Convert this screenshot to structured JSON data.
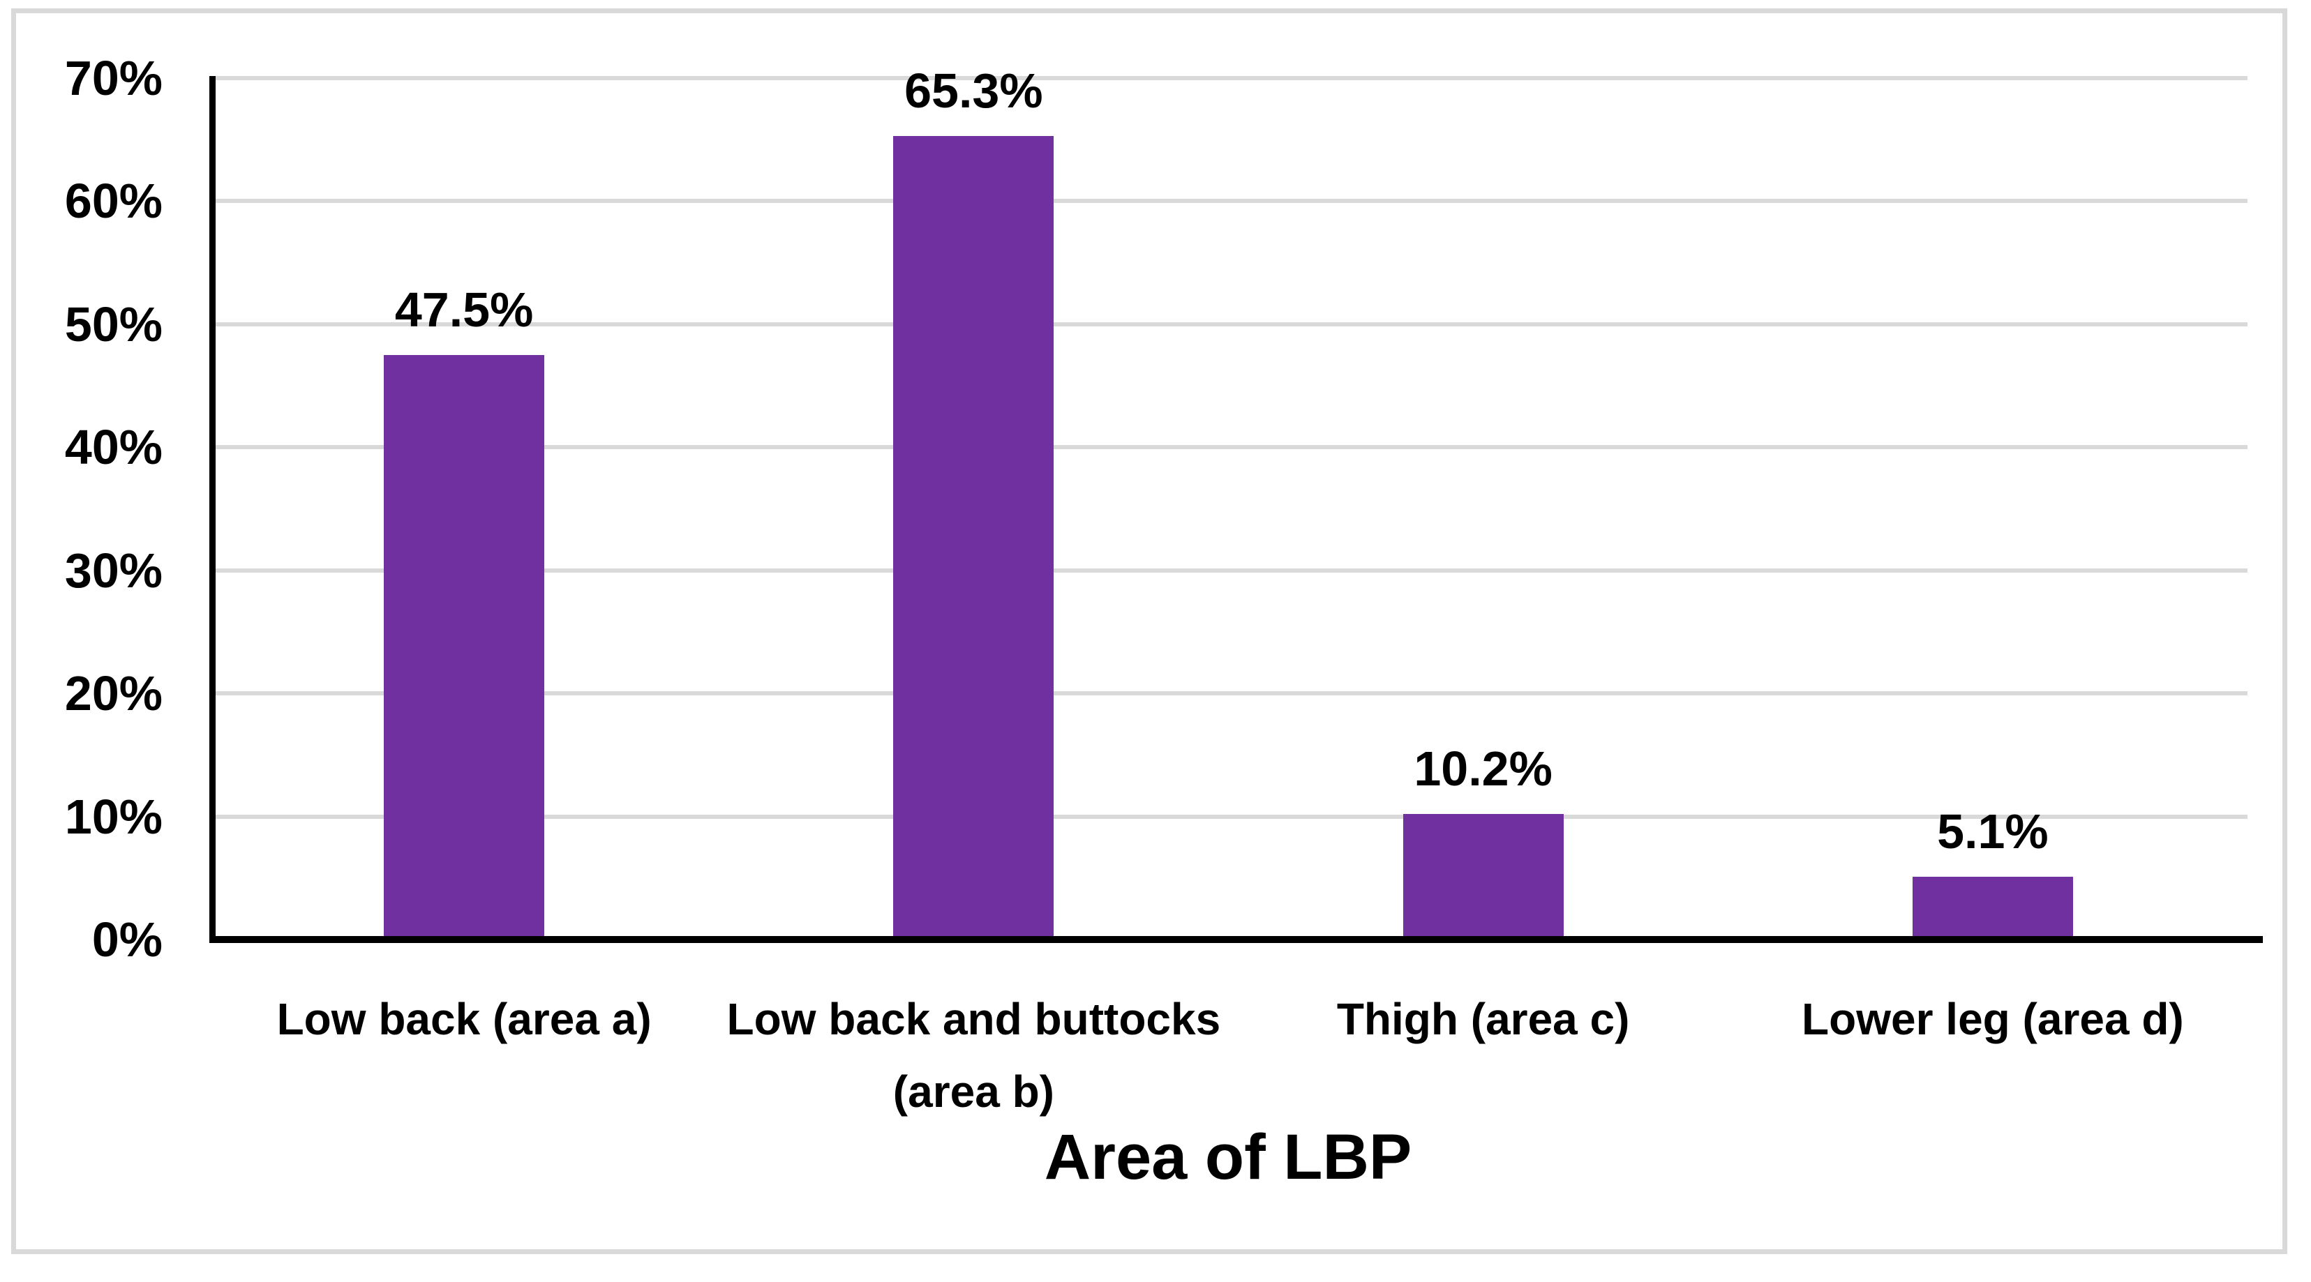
{
  "chart_data": {
    "type": "bar",
    "title": "",
    "xlabel": "Area of LBP",
    "ylabel": "",
    "categories": [
      "Low back (area a)",
      "Low back and buttocks (area b)",
      "Thigh (area c)",
      "Lower leg (area d)"
    ],
    "values": [
      47.5,
      65.3,
      10.2,
      5.1
    ],
    "data_labels": [
      "47.5%",
      "65.3%",
      "10.2%",
      "5.1%"
    ],
    "ylim": [
      0,
      70
    ],
    "y_tick_values": [
      0,
      10,
      20,
      30,
      40,
      50,
      60,
      70
    ],
    "y_tick_labels": [
      "0%",
      "10%",
      "20%",
      "30%",
      "40%",
      "50%",
      "60%",
      "70%"
    ],
    "grid": "horizontal",
    "legend": "none",
    "colors": {
      "bar": "#7030A0",
      "gridline": "#d9d9d9",
      "axis": "#000000",
      "frame_border": "#d9d9d9",
      "background": "#ffffff",
      "text": "#000000"
    }
  }
}
